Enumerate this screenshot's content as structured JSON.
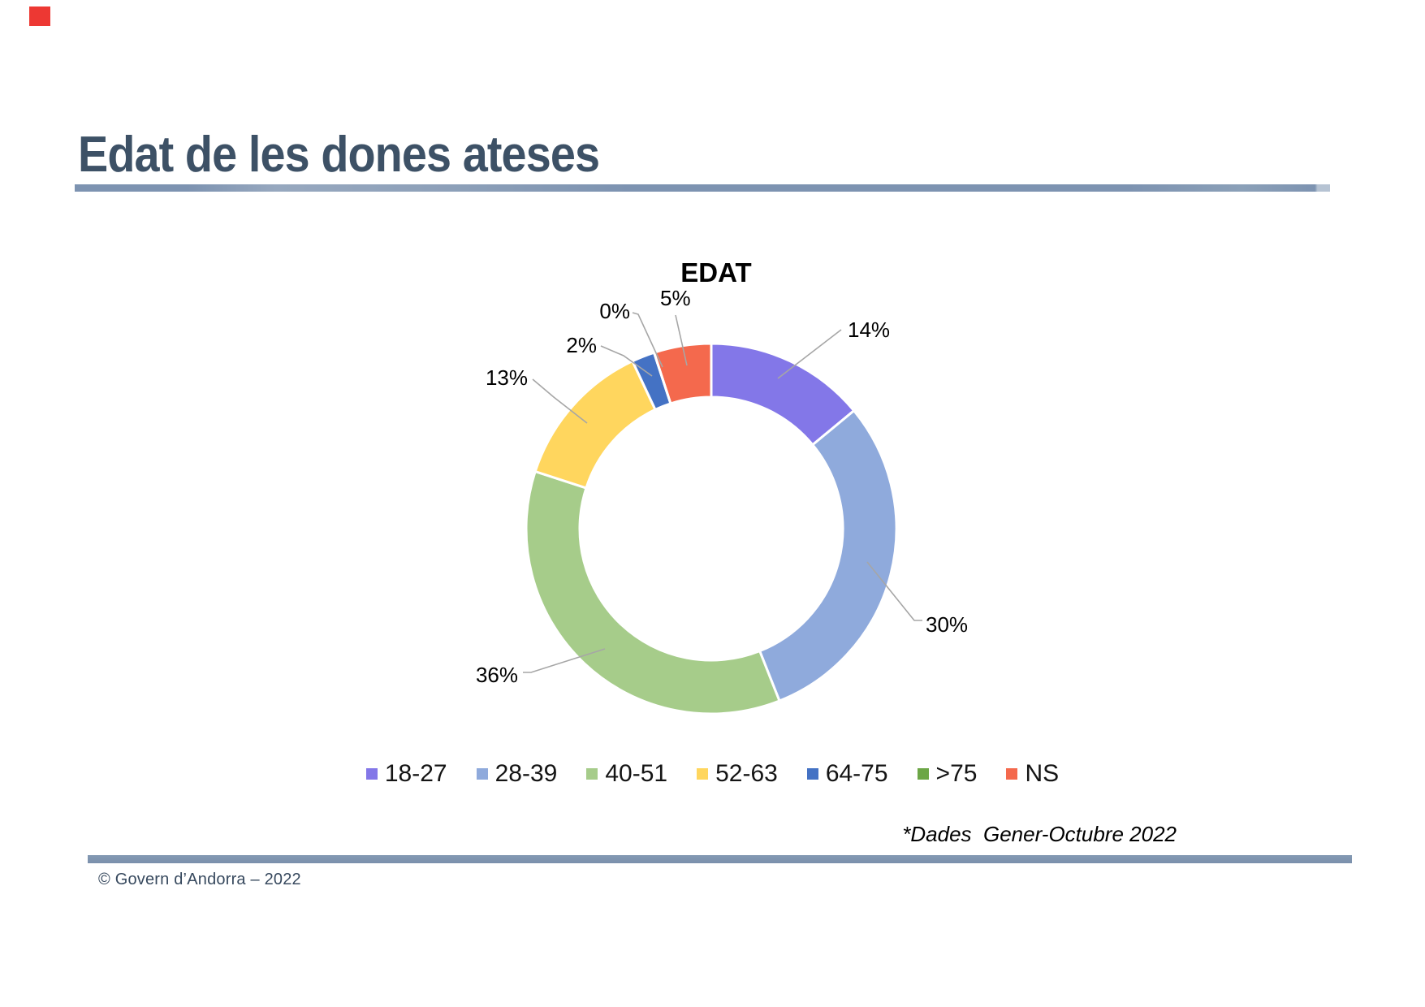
{
  "page": {
    "background": "#ffffff"
  },
  "corner_mark": {
    "color": "#ed3833"
  },
  "header": {
    "title": "Edat de les dones ateses",
    "title_color": "#3d5166",
    "rule_color": "#7d93b1"
  },
  "chart_data": {
    "type": "pie",
    "subtype": "donut",
    "title": "EDAT",
    "categories": [
      "18-27",
      "28-39",
      "40-51",
      "52-63",
      "64-75",
      ">75",
      "NS"
    ],
    "values": [
      14,
      30,
      36,
      13,
      2,
      0,
      5
    ],
    "labels": [
      "14%",
      "30%",
      "36%",
      "13%",
      "2%",
      "0%",
      "5%"
    ],
    "unit": "%",
    "colors": [
      "#8377e8",
      "#8faadc",
      "#a6cc8a",
      "#ffd65e",
      "#4472c4",
      "#6ca646",
      "#f4694d"
    ],
    "leader_line_color": "#a6a6a6",
    "legend_position": "bottom"
  },
  "footnote": {
    "text": "*Dades  Gener-Octubre 2022"
  },
  "footer": {
    "copyright": "© Govern d’Andorra – 2022",
    "rule_color": "#7e93ae"
  }
}
